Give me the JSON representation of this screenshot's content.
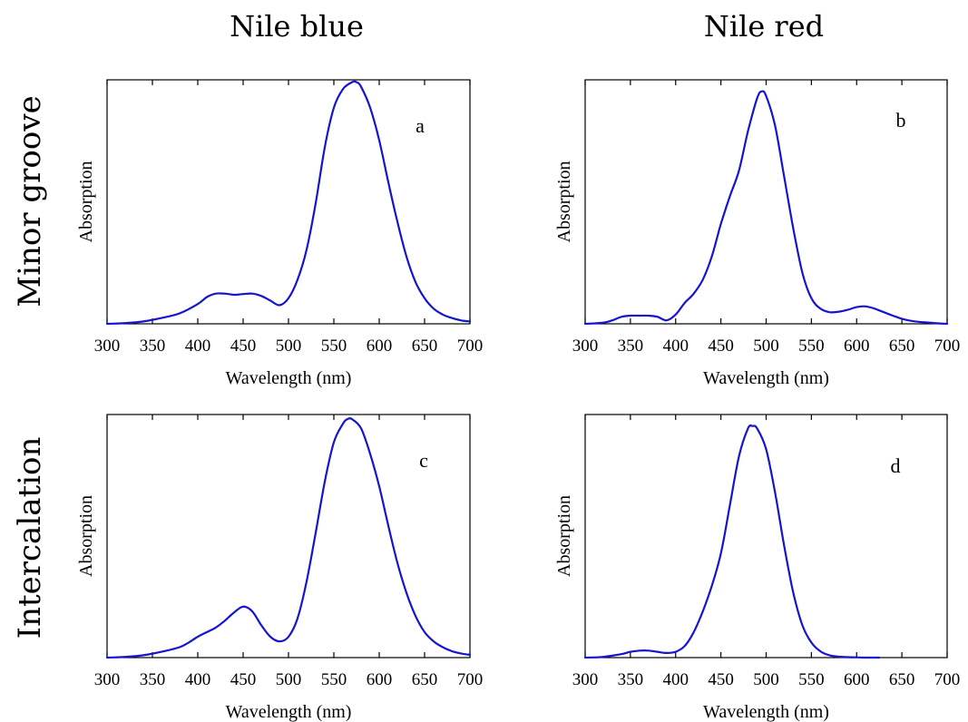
{
  "figure": {
    "column_titles": [
      "Nile blue",
      "Nile red"
    ],
    "row_titles": [
      "Minor groove",
      "Intercalation"
    ]
  },
  "colors": {
    "curve": "#1414d2"
  },
  "chart_data": [
    {
      "type": "line",
      "panel_label": "a",
      "xlabel": "Wavelength (nm)",
      "ylabel": "Absorption",
      "xlim": [
        300,
        700
      ],
      "ylim": [
        0,
        1.05
      ],
      "xticks": [
        300,
        350,
        400,
        450,
        500,
        550,
        600,
        650,
        700
      ],
      "series": [
        {
          "x": [
            300,
            320,
            340,
            360,
            380,
            400,
            410,
            420,
            430,
            440,
            450,
            460,
            470,
            480,
            490,
            500,
            510,
            520,
            530,
            540,
            550,
            560,
            570,
            575,
            580,
            590,
            600,
            610,
            620,
            630,
            640,
            650,
            660,
            670,
            680,
            690,
            700
          ],
          "values": [
            0.0,
            0.003,
            0.01,
            0.025,
            0.045,
            0.085,
            0.115,
            0.13,
            0.13,
            0.125,
            0.128,
            0.13,
            0.12,
            0.1,
            0.08,
            0.11,
            0.19,
            0.32,
            0.52,
            0.76,
            0.93,
            1.01,
            1.04,
            1.04,
            1.02,
            0.93,
            0.79,
            0.61,
            0.44,
            0.29,
            0.18,
            0.11,
            0.065,
            0.04,
            0.025,
            0.015,
            0.01
          ]
        }
      ]
    },
    {
      "type": "line",
      "panel_label": "b",
      "xlabel": "Wavelength (nm)",
      "ylabel": "Absorption",
      "xlim": [
        300,
        700
      ],
      "ylim": [
        0,
        1.05
      ],
      "xticks": [
        300,
        350,
        400,
        450,
        500,
        550,
        600,
        650,
        700
      ],
      "series": [
        {
          "x": [
            300,
            320,
            330,
            340,
            350,
            360,
            370,
            380,
            390,
            400,
            410,
            420,
            430,
            440,
            450,
            460,
            470,
            480,
            490,
            495,
            500,
            510,
            520,
            530,
            540,
            550,
            560,
            570,
            580,
            590,
            600,
            610,
            620,
            630,
            640,
            650,
            660,
            670,
            680,
            690,
            700
          ],
          "values": [
            0.0,
            0.005,
            0.015,
            0.03,
            0.035,
            0.035,
            0.035,
            0.03,
            0.015,
            0.04,
            0.09,
            0.13,
            0.19,
            0.29,
            0.43,
            0.55,
            0.66,
            0.83,
            0.97,
            1.0,
            0.98,
            0.85,
            0.63,
            0.41,
            0.22,
            0.11,
            0.065,
            0.05,
            0.052,
            0.06,
            0.072,
            0.075,
            0.065,
            0.05,
            0.035,
            0.022,
            0.013,
            0.008,
            0.005,
            0.002,
            0.0
          ]
        }
      ]
    },
    {
      "type": "line",
      "panel_label": "c",
      "xlabel": "Wavelength (nm)",
      "ylabel": "Absorption",
      "xlim": [
        300,
        700
      ],
      "ylim": [
        0,
        1.05
      ],
      "xticks": [
        300,
        350,
        400,
        450,
        500,
        550,
        600,
        650,
        700
      ],
      "series": [
        {
          "x": [
            300,
            320,
            340,
            360,
            380,
            390,
            400,
            410,
            420,
            430,
            440,
            450,
            460,
            470,
            480,
            490,
            500,
            510,
            520,
            530,
            540,
            550,
            560,
            565,
            570,
            580,
            590,
            600,
            610,
            620,
            630,
            640,
            650,
            660,
            670,
            680,
            690,
            700
          ],
          "values": [
            0.0,
            0.003,
            0.01,
            0.025,
            0.045,
            0.065,
            0.09,
            0.11,
            0.13,
            0.16,
            0.195,
            0.22,
            0.2,
            0.14,
            0.09,
            0.07,
            0.09,
            0.17,
            0.33,
            0.54,
            0.76,
            0.93,
            1.01,
            1.03,
            1.03,
            0.99,
            0.88,
            0.74,
            0.57,
            0.41,
            0.28,
            0.18,
            0.11,
            0.07,
            0.045,
            0.028,
            0.018,
            0.012
          ]
        }
      ]
    },
    {
      "type": "line",
      "panel_label": "d",
      "xlabel": "Wavelength (nm)",
      "ylabel": "Absorption",
      "xlim": [
        300,
        700
      ],
      "ylim": [
        0,
        1.05
      ],
      "xticks": [
        300,
        350,
        400,
        450,
        500,
        550,
        600,
        650,
        700
      ],
      "series": [
        {
          "x": [
            300,
            320,
            340,
            350,
            360,
            370,
            380,
            390,
            400,
            410,
            420,
            430,
            440,
            450,
            460,
            470,
            480,
            485,
            490,
            500,
            510,
            520,
            530,
            540,
            550,
            560,
            570,
            580,
            590,
            600,
            610,
            620,
            625
          ],
          "values": [
            0.0,
            0.003,
            0.015,
            0.025,
            0.03,
            0.03,
            0.025,
            0.02,
            0.025,
            0.05,
            0.11,
            0.2,
            0.31,
            0.45,
            0.66,
            0.87,
            0.99,
            1.0,
            0.99,
            0.9,
            0.71,
            0.48,
            0.28,
            0.14,
            0.065,
            0.027,
            0.01,
            0.004,
            0.002,
            0.001,
            0.0,
            0.0,
            0.0
          ]
        }
      ]
    }
  ]
}
